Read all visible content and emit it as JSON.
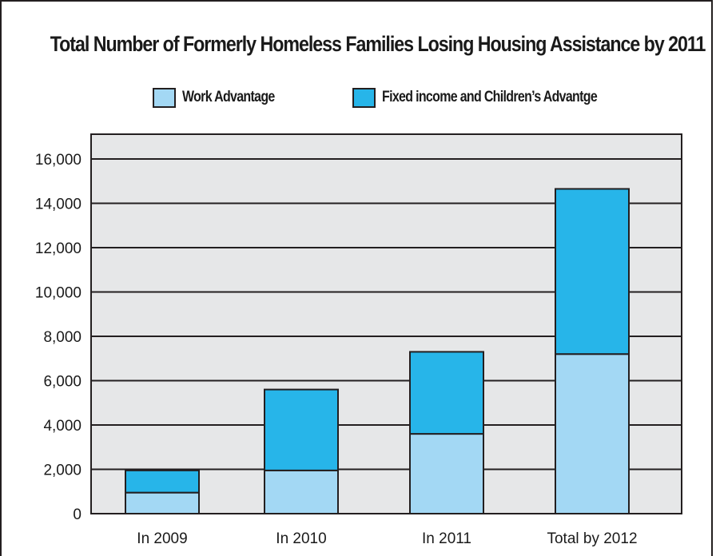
{
  "chart_data": {
    "type": "bar",
    "stacked": true,
    "title": "Total Number of Formerly Homeless Families Losing Housing Assistance by 2011",
    "categories": [
      "In 2009",
      "In 2010",
      "In 2011",
      "Total by 2012"
    ],
    "series": [
      {
        "name": "Work Advantage",
        "color": "#a3d8f4",
        "values": [
          950,
          1950,
          3600,
          7200
        ]
      },
      {
        "name": "Fixed income and Children’s Advantge",
        "color": "#27b5e9",
        "values": [
          1000,
          3650,
          3700,
          7450
        ]
      }
    ],
    "yticks": [
      "0",
      "2,000",
      "4,000",
      "6,000",
      "8,000",
      "10,000",
      "12,000",
      "14,000",
      "16,000"
    ],
    "ylim": [
      0,
      16000
    ],
    "grid": true,
    "legend_position": "top",
    "plot_background": "#e6e7e8"
  }
}
